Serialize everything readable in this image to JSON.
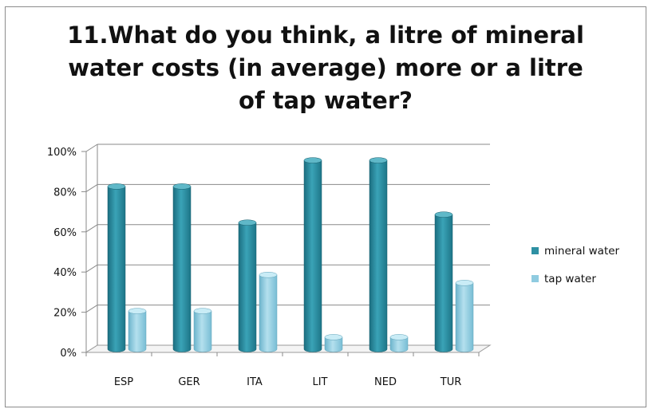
{
  "chart_data": {
    "type": "bar",
    "title": "11.What do you think, a litre of mineral water costs (in average) more or a litre of tap water?",
    "categories": [
      "ESP",
      "GER",
      "ITA",
      "LIT",
      "NED",
      "TUR"
    ],
    "series": [
      {
        "name": "mineral water",
        "values": [
          81,
          81,
          63,
          94,
          94,
          67
        ],
        "color": "#2e90a3"
      },
      {
        "name": "tap water",
        "values": [
          19,
          19,
          37,
          6,
          6,
          33
        ],
        "color": "#8fcbe0"
      }
    ],
    "ylim": [
      0,
      100
    ],
    "yticks": [
      "0%",
      "20%",
      "40%",
      "60%",
      "80%",
      "100%"
    ],
    "ytick_values": [
      0,
      20,
      40,
      60,
      80,
      100
    ],
    "grid": true,
    "legend": "right",
    "xlabel": "",
    "ylabel": ""
  }
}
